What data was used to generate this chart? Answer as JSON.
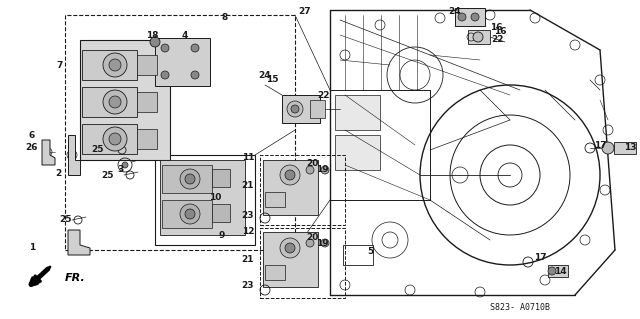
{
  "part_code": "S823- A0710B",
  "bg_color": "#ffffff",
  "line_color": "#1a1a1a",
  "fig_width": 6.4,
  "fig_height": 3.19,
  "dpi": 100,
  "labels": {
    "fr": "FR.",
    "part_code": "S823- A0710B"
  }
}
